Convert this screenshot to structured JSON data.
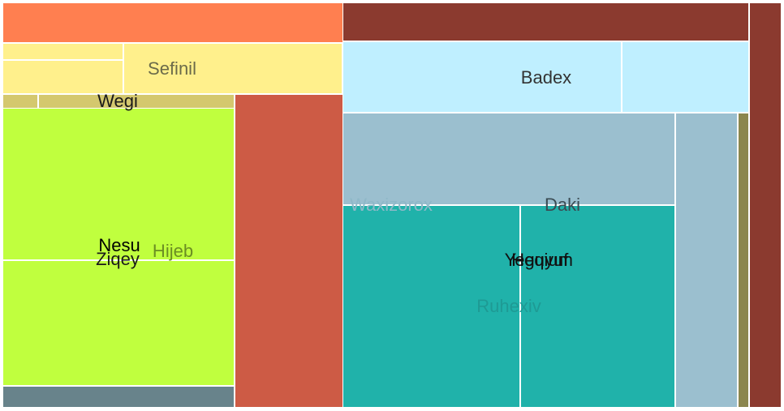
{
  "chart_data": {
    "type": "treemap",
    "title": "",
    "groups": [
      {
        "name": "Hijeb",
        "color": "#c0ff3e",
        "label_color": "#6b8e23",
        "children": [
          {
            "name": "Nesu",
            "value": 0.083,
            "color": "#c0ff3e"
          },
          {
            "name": "Ziqey",
            "value": 0.0614,
            "color": "#c0ff3e"
          },
          {
            "name": "Wegi",
            "value": 0.0054,
            "color": "#d4c86e"
          },
          {
            "name": "Sefinil",
            "value": 0.0224,
            "color": "#fff08c"
          },
          {
            "name": "",
            "value": 0.01,
            "color": "#fff08c"
          },
          {
            "name": "",
            "value": 0.01,
            "color": "#fff08c"
          },
          {
            "name": "",
            "value": 0.0048,
            "color": "#d4c86e"
          },
          {
            "name": "",
            "value": 0.0206,
            "color": "#ff7f50"
          },
          {
            "name": "",
            "value": 0.0161,
            "color": "#68838b"
          },
          {
            "name": "",
            "value": 0.0744,
            "color": "#cd5b45"
          }
        ]
      },
      {
        "name": "Waxizorox",
        "color": "#9bbfcf",
        "label_color": "#8fb8c8",
        "children": [
          {
            "name": "Badex",
            "value": 0.052,
            "color": "#bfefff"
          },
          {
            "name": "",
            "value": 0.032,
            "color": "#bfefff"
          },
          {
            "name": "Daki",
            "value": 0.068,
            "color": "#9bbfcf"
          },
          {
            "name": "",
            "value": 0.039,
            "color": "#9bbfcf"
          },
          {
            "name": "Yeguyuf",
            "value": 0.044,
            "color": "#20b2aa"
          },
          {
            "name": "Heqium",
            "value": 0.049,
            "color": "#20b2aa"
          },
          {
            "name": "",
            "value": 0.004,
            "color": "#8b864e"
          },
          {
            "name": "",
            "value": 0.05,
            "color": "#8b3a2f"
          }
        ]
      }
    ],
    "extra_labels": [
      {
        "name": "Ruhexiv",
        "color": "#1e9a94"
      }
    ]
  }
}
